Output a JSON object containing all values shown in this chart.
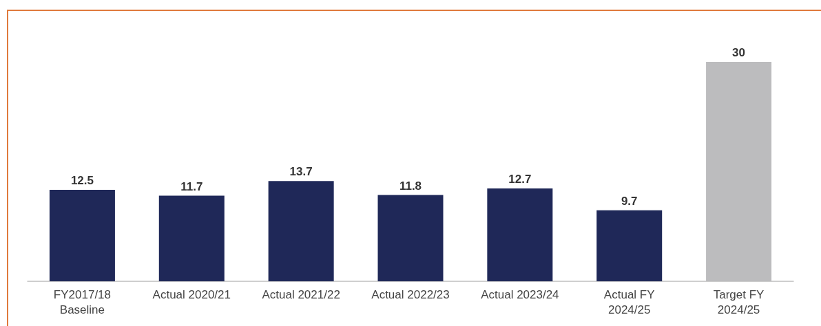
{
  "chart_data": {
    "type": "bar",
    "categories": [
      "FY2017/18\nBaseline",
      "Actual 2020/21",
      "Actual 2021/22",
      "Actual 2022/23",
      "Actual 2023/24",
      "Actual FY\n2024/25",
      "Target FY\n2024/25"
    ],
    "values": [
      12.5,
      11.7,
      13.7,
      11.8,
      12.7,
      9.7,
      30
    ],
    "colors": [
      "#1f2858",
      "#1f2858",
      "#1f2858",
      "#1f2858",
      "#1f2858",
      "#1f2858",
      "#bcbcbe"
    ],
    "data_labels": true
  }
}
